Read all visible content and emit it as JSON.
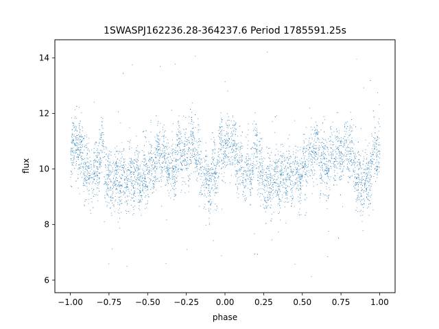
{
  "chart_data": {
    "type": "scatter",
    "title": "1SWASPJ162236.28-364237.6 Period 1785591.25s",
    "xlabel": "phase",
    "ylabel": "flux",
    "xlim": [
      -1.1,
      1.1
    ],
    "ylim": [
      5.55,
      14.65
    ],
    "x_ticks": [
      -1.0,
      -0.75,
      -0.5,
      -0.25,
      0.0,
      0.25,
      0.5,
      0.75,
      1.0
    ],
    "x_tick_labels": [
      "−1.00",
      "−0.75",
      "−0.50",
      "−0.25",
      "0.00",
      "0.25",
      "0.50",
      "0.75",
      "1.00"
    ],
    "y_ticks": [
      6,
      8,
      10,
      12,
      14
    ],
    "y_tick_labels": [
      "6",
      "8",
      "10",
      "12",
      "14"
    ],
    "grid": false,
    "marker_color": "#1f77b4",
    "phase_profile": {
      "phase": [
        0.0,
        0.02,
        0.05,
        0.08,
        0.12,
        0.16,
        0.2,
        0.24,
        0.28,
        0.33,
        0.38,
        0.43,
        0.48,
        0.53,
        0.58,
        0.62,
        0.66,
        0.7,
        0.74,
        0.78,
        0.82,
        0.86,
        0.9,
        0.94,
        0.97,
        1.0
      ],
      "median_flux": [
        10.5,
        10.8,
        10.9,
        10.3,
        9.8,
        9.9,
        10.8,
        9.6,
        9.5,
        9.7,
        9.8,
        9.7,
        9.7,
        10.2,
        10.6,
        10.3,
        10.1,
        10.6,
        10.4,
        10.9,
        10.5,
        9.5,
        9.6,
        9.9,
        10.8,
        10.5
      ]
    },
    "scatter_band": {
      "inner_spread": 0.9,
      "outlier_min": 6.0,
      "outlier_max": 14.3
    }
  }
}
